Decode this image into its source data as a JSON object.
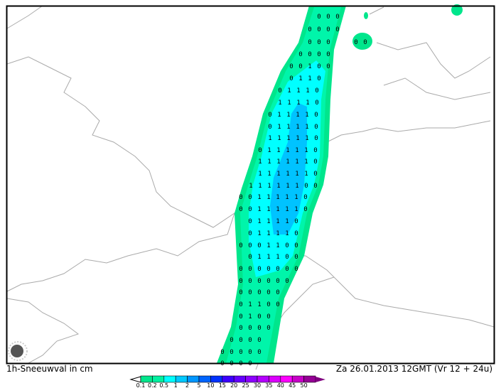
{
  "map": {
    "title_left": "1h-Sneeuwval in cm",
    "title_right": "Za 26.01.2013 12GMT (Vr 12 + 24u)",
    "logo_icon": "sun-logo-icon",
    "colors": {
      "c01": "#00e68c",
      "c02": "#00f5aa",
      "c05": "#00ffff",
      "c1": "#00c3ff",
      "frame": "#000000",
      "coast": "#aaaaaa"
    }
  },
  "legend": {
    "ticks": [
      "0.1",
      "0.2",
      "0.5",
      "1",
      "2",
      "5",
      "10",
      "15",
      "20",
      "25",
      "30",
      "35",
      "40",
      "45",
      "50"
    ],
    "colors": [
      "#00e68c",
      "#00f0a0",
      "#00ffff",
      "#00c8ff",
      "#0096ff",
      "#0064ff",
      "#0032ff",
      "#3c00ff",
      "#6400ff",
      "#8c00ff",
      "#b400ff",
      "#dc00ff",
      "#ff00ff",
      "#c800c8",
      "#960096"
    ]
  },
  "grid_values": [
    {
      "y": 22,
      "x0": 449,
      "v": "000"
    },
    {
      "y": 40,
      "x0": 436,
      "v": "0000"
    },
    {
      "y": 58,
      "x0": 436,
      "v": "000"
    },
    {
      "y": 58,
      "x0": 501,
      "v": "00"
    },
    {
      "y": 75,
      "x0": 423,
      "v": "0000"
    },
    {
      "y": 92,
      "x0": 410,
      "v": "00100"
    },
    {
      "y": 109,
      "x0": 410,
      "v": "0110"
    },
    {
      "y": 126,
      "x0": 394,
      "v": "01110"
    },
    {
      "y": 143,
      "x0": 394,
      "v": "11110"
    },
    {
      "y": 160,
      "x0": 380,
      "v": "011110"
    },
    {
      "y": 177,
      "x0": 380,
      "v": "011110"
    },
    {
      "y": 193,
      "x0": 380,
      "v": "111110"
    },
    {
      "y": 210,
      "x0": 366,
      "v": "0111110"
    },
    {
      "y": 226,
      "x0": 366,
      "v": "1111110"
    },
    {
      "y": 243,
      "x0": 366,
      "v": "1111110"
    },
    {
      "y": 260,
      "x0": 353,
      "v": "11111100"
    },
    {
      "y": 276,
      "x0": 339,
      "v": "00111110"
    },
    {
      "y": 293,
      "x0": 339,
      "v": "00111110"
    },
    {
      "y": 310,
      "x0": 352,
      "v": "011110"
    },
    {
      "y": 327,
      "x0": 352,
      "v": "011110"
    },
    {
      "y": 344,
      "x0": 339,
      "v": "0001100"
    },
    {
      "y": 360,
      "x0": 352,
      "v": "011100"
    },
    {
      "y": 377,
      "x0": 339,
      "v": "0000000"
    },
    {
      "y": 394,
      "x0": 339,
      "v": "000000"
    },
    {
      "y": 410,
      "x0": 339,
      "v": "00000"
    },
    {
      "y": 427,
      "x0": 339,
      "v": "01100"
    },
    {
      "y": 444,
      "x0": 339,
      "v": "0100"
    },
    {
      "y": 460,
      "x0": 339,
      "v": "0000"
    },
    {
      "y": 477,
      "x0": 326,
      "v": "0000"
    },
    {
      "y": 494,
      "x0": 313,
      "v": "00000"
    },
    {
      "y": 510,
      "x0": 313,
      "v": "0000"
    }
  ]
}
